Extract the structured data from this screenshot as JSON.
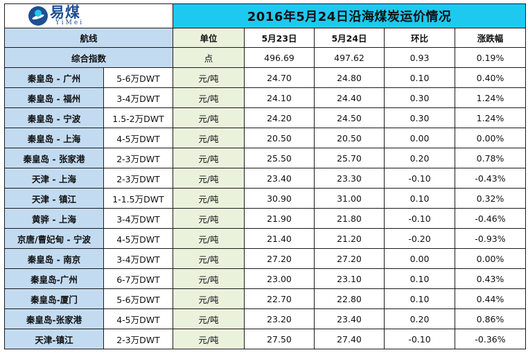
{
  "logo": {
    "cn": "易煤",
    "en": "YiMei"
  },
  "title": "2016年5月24日沿海煤炭运价情况",
  "headers": {
    "route": "航线",
    "unit": "单位",
    "d1": "5月23日",
    "d2": "5月24日",
    "change": "环比",
    "pct": "涨跌幅"
  },
  "index_row": {
    "label": "综合指数",
    "unit": "点",
    "d1": "496.69",
    "d2": "497.62",
    "change": "0.93",
    "pct": "0.19%"
  },
  "rows": [
    {
      "route": "秦皇岛 - 广州",
      "size": "5-6万DWT",
      "unit": "元/吨",
      "d1": "24.70",
      "d2": "24.80",
      "change": "0.10",
      "pct": "0.40%"
    },
    {
      "route": "秦皇岛 - 福州",
      "size": "3-4万DWT",
      "unit": "元/吨",
      "d1": "24.10",
      "d2": "24.40",
      "change": "0.30",
      "pct": "1.24%"
    },
    {
      "route": "秦皇岛 - 宁波",
      "size": "1.5-2万DWT",
      "unit": "元/吨",
      "d1": "24.20",
      "d2": "24.50",
      "change": "0.30",
      "pct": "1.24%"
    },
    {
      "route": "秦皇岛 - 上海",
      "size": "4-5万DWT",
      "unit": "元/吨",
      "d1": "20.50",
      "d2": "20.50",
      "change": "0.00",
      "pct": "0.00%"
    },
    {
      "route": "秦皇岛 - 张家港",
      "size": "2-3万DWT",
      "unit": "元/吨",
      "d1": "25.50",
      "d2": "25.70",
      "change": "0.20",
      "pct": "0.78%"
    },
    {
      "route": "天津 - 上海",
      "size": "2-3万DWT",
      "unit": "元/吨",
      "d1": "23.40",
      "d2": "23.30",
      "change": "-0.10",
      "pct": "-0.43%"
    },
    {
      "route": "天津 - 镇江",
      "size": "1-1.5万DWT",
      "unit": "元/吨",
      "d1": "30.90",
      "d2": "31.00",
      "change": "0.10",
      "pct": "0.32%"
    },
    {
      "route": "黄骅 - 上海",
      "size": "3-4万DWT",
      "unit": "元/吨",
      "d1": "21.90",
      "d2": "21.80",
      "change": "-0.10",
      "pct": "-0.46%"
    },
    {
      "route": "京唐/曹妃甸 - 宁波",
      "size": "4-5万DWT",
      "unit": "元/吨",
      "d1": "21.40",
      "d2": "21.20",
      "change": "-0.20",
      "pct": "-0.93%"
    },
    {
      "route": "秦皇岛 - 南京",
      "size": "3-4万DWT",
      "unit": "元/吨",
      "d1": "27.20",
      "d2": "27.20",
      "change": "0.00",
      "pct": "0.00%"
    },
    {
      "route": "秦皇岛-广州",
      "size": "6-7万DWT",
      "unit": "元/吨",
      "d1": "23.00",
      "d2": "23.10",
      "change": "0.10",
      "pct": "0.43%"
    },
    {
      "route": "秦皇岛-厦门",
      "size": "5-6万DWT",
      "unit": "元/吨",
      "d1": "22.70",
      "d2": "22.80",
      "change": "0.10",
      "pct": "0.44%"
    },
    {
      "route": "秦皇岛-张家港",
      "size": "4-5万DWT",
      "unit": "元/吨",
      "d1": "23.20",
      "d2": "23.40",
      "change": "0.20",
      "pct": "0.86%"
    },
    {
      "route": "天津-镇江",
      "size": "2-3万DWT",
      "unit": "元/吨",
      "d1": "27.50",
      "d2": "27.40",
      "change": "-0.10",
      "pct": "-0.36%"
    }
  ]
}
